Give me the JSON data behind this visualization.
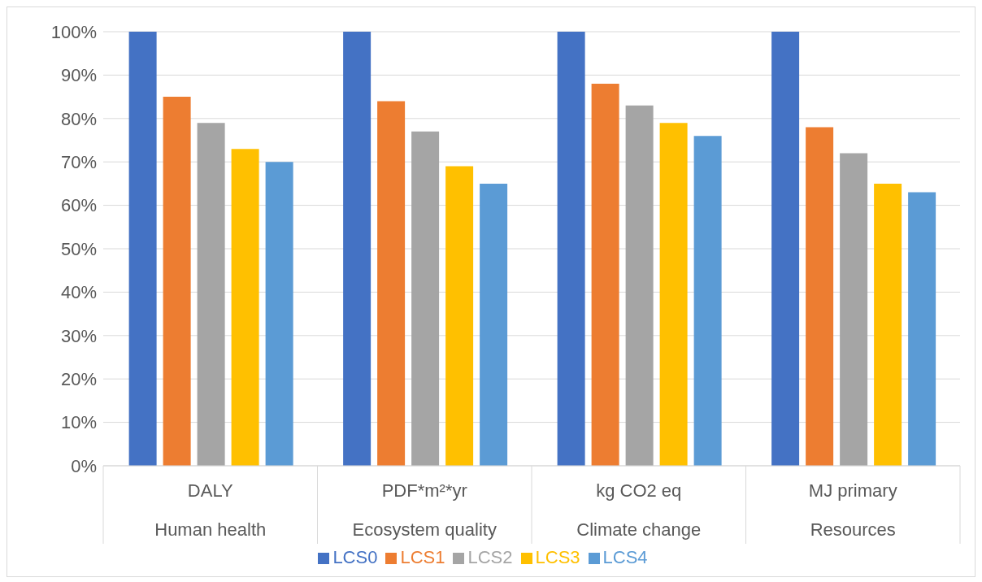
{
  "chart_data": {
    "type": "bar",
    "categories": [
      "DALY\nHuman health",
      "PDF*m²*yr\nEcosystem quality",
      "kg CO2 eq\nClimate change",
      "MJ primary\nResources"
    ],
    "series": [
      {
        "name": "LCS0",
        "color": "#4472c4",
        "values": [
          100,
          100,
          100,
          100
        ]
      },
      {
        "name": "LCS1",
        "color": "#ed7d31",
        "values": [
          85,
          84,
          88,
          78
        ]
      },
      {
        "name": "LCS2",
        "color": "#a5a5a5",
        "values": [
          79,
          77,
          83,
          72
        ]
      },
      {
        "name": "LCS3",
        "color": "#ffc000",
        "values": [
          73,
          69,
          79,
          65
        ]
      },
      {
        "name": "LCS4",
        "color": "#5b9bd5",
        "values": [
          70,
          65,
          76,
          63
        ]
      }
    ],
    "ylim": [
      0,
      100
    ],
    "yticks": [
      {
        "value": 0,
        "label": "0%"
      },
      {
        "value": 10,
        "label": "10%"
      },
      {
        "value": 20,
        "label": "20%"
      },
      {
        "value": 30,
        "label": "30%"
      },
      {
        "value": 40,
        "label": "40%"
      },
      {
        "value": 50,
        "label": "50%"
      },
      {
        "value": 60,
        "label": "60%"
      },
      {
        "value": 70,
        "label": "70%"
      },
      {
        "value": 80,
        "label": "80%"
      },
      {
        "value": 90,
        "label": "90%"
      },
      {
        "value": 100,
        "label": "100%"
      }
    ],
    "grid": "y",
    "legend": "bottom"
  }
}
